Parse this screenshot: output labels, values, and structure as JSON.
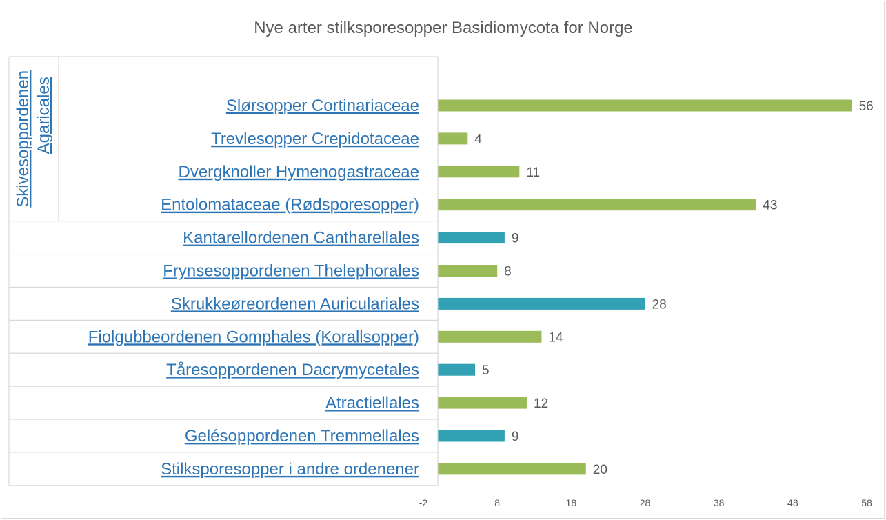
{
  "chart_data": {
    "type": "bar",
    "orientation": "horizontal",
    "title": "Nye arter stilksporesopper Basidiomycota for Norge",
    "xlim": [
      -2,
      58
    ],
    "x_ticks": [
      -2,
      8,
      18,
      28,
      38,
      48,
      58
    ],
    "grid": false,
    "legend": "none",
    "colors": {
      "green": "#9bbb59",
      "teal": "#31a1b3",
      "label": "#2e75b6",
      "text": "#595959",
      "border": "#d9d9d9"
    },
    "groups": [
      {
        "name_line1": "Skivesoppordenen",
        "name_line2": "Agaricales",
        "rows": [
          0,
          1,
          2,
          3
        ]
      }
    ],
    "categories": [
      "Slørsopper Cortinariaceae",
      "Trevlesopper Crepidotaceae",
      "Dvergknoller Hymenogastraceae",
      "Entolomataceae (Rødsporesopper)",
      "Kantarellordenen Cantharellales",
      "Frynsesoppordenen Thelephorales",
      "Skrukkeøreordenen Auriculariales",
      "Fiolgubbeordenen Gomphales (Korallsopper)",
      "Tåresoppordenen Dacrymycetales",
      "Atractiellales",
      "Gelésoppordenen Tremmellales",
      "Stilksporesopper i andre ordenener"
    ],
    "values": [
      56,
      4,
      11,
      43,
      9,
      8,
      28,
      14,
      5,
      12,
      9,
      20
    ],
    "bar_colors": [
      "green",
      "green",
      "green",
      "green",
      "teal",
      "green",
      "teal",
      "green",
      "teal",
      "green",
      "teal",
      "green"
    ]
  }
}
